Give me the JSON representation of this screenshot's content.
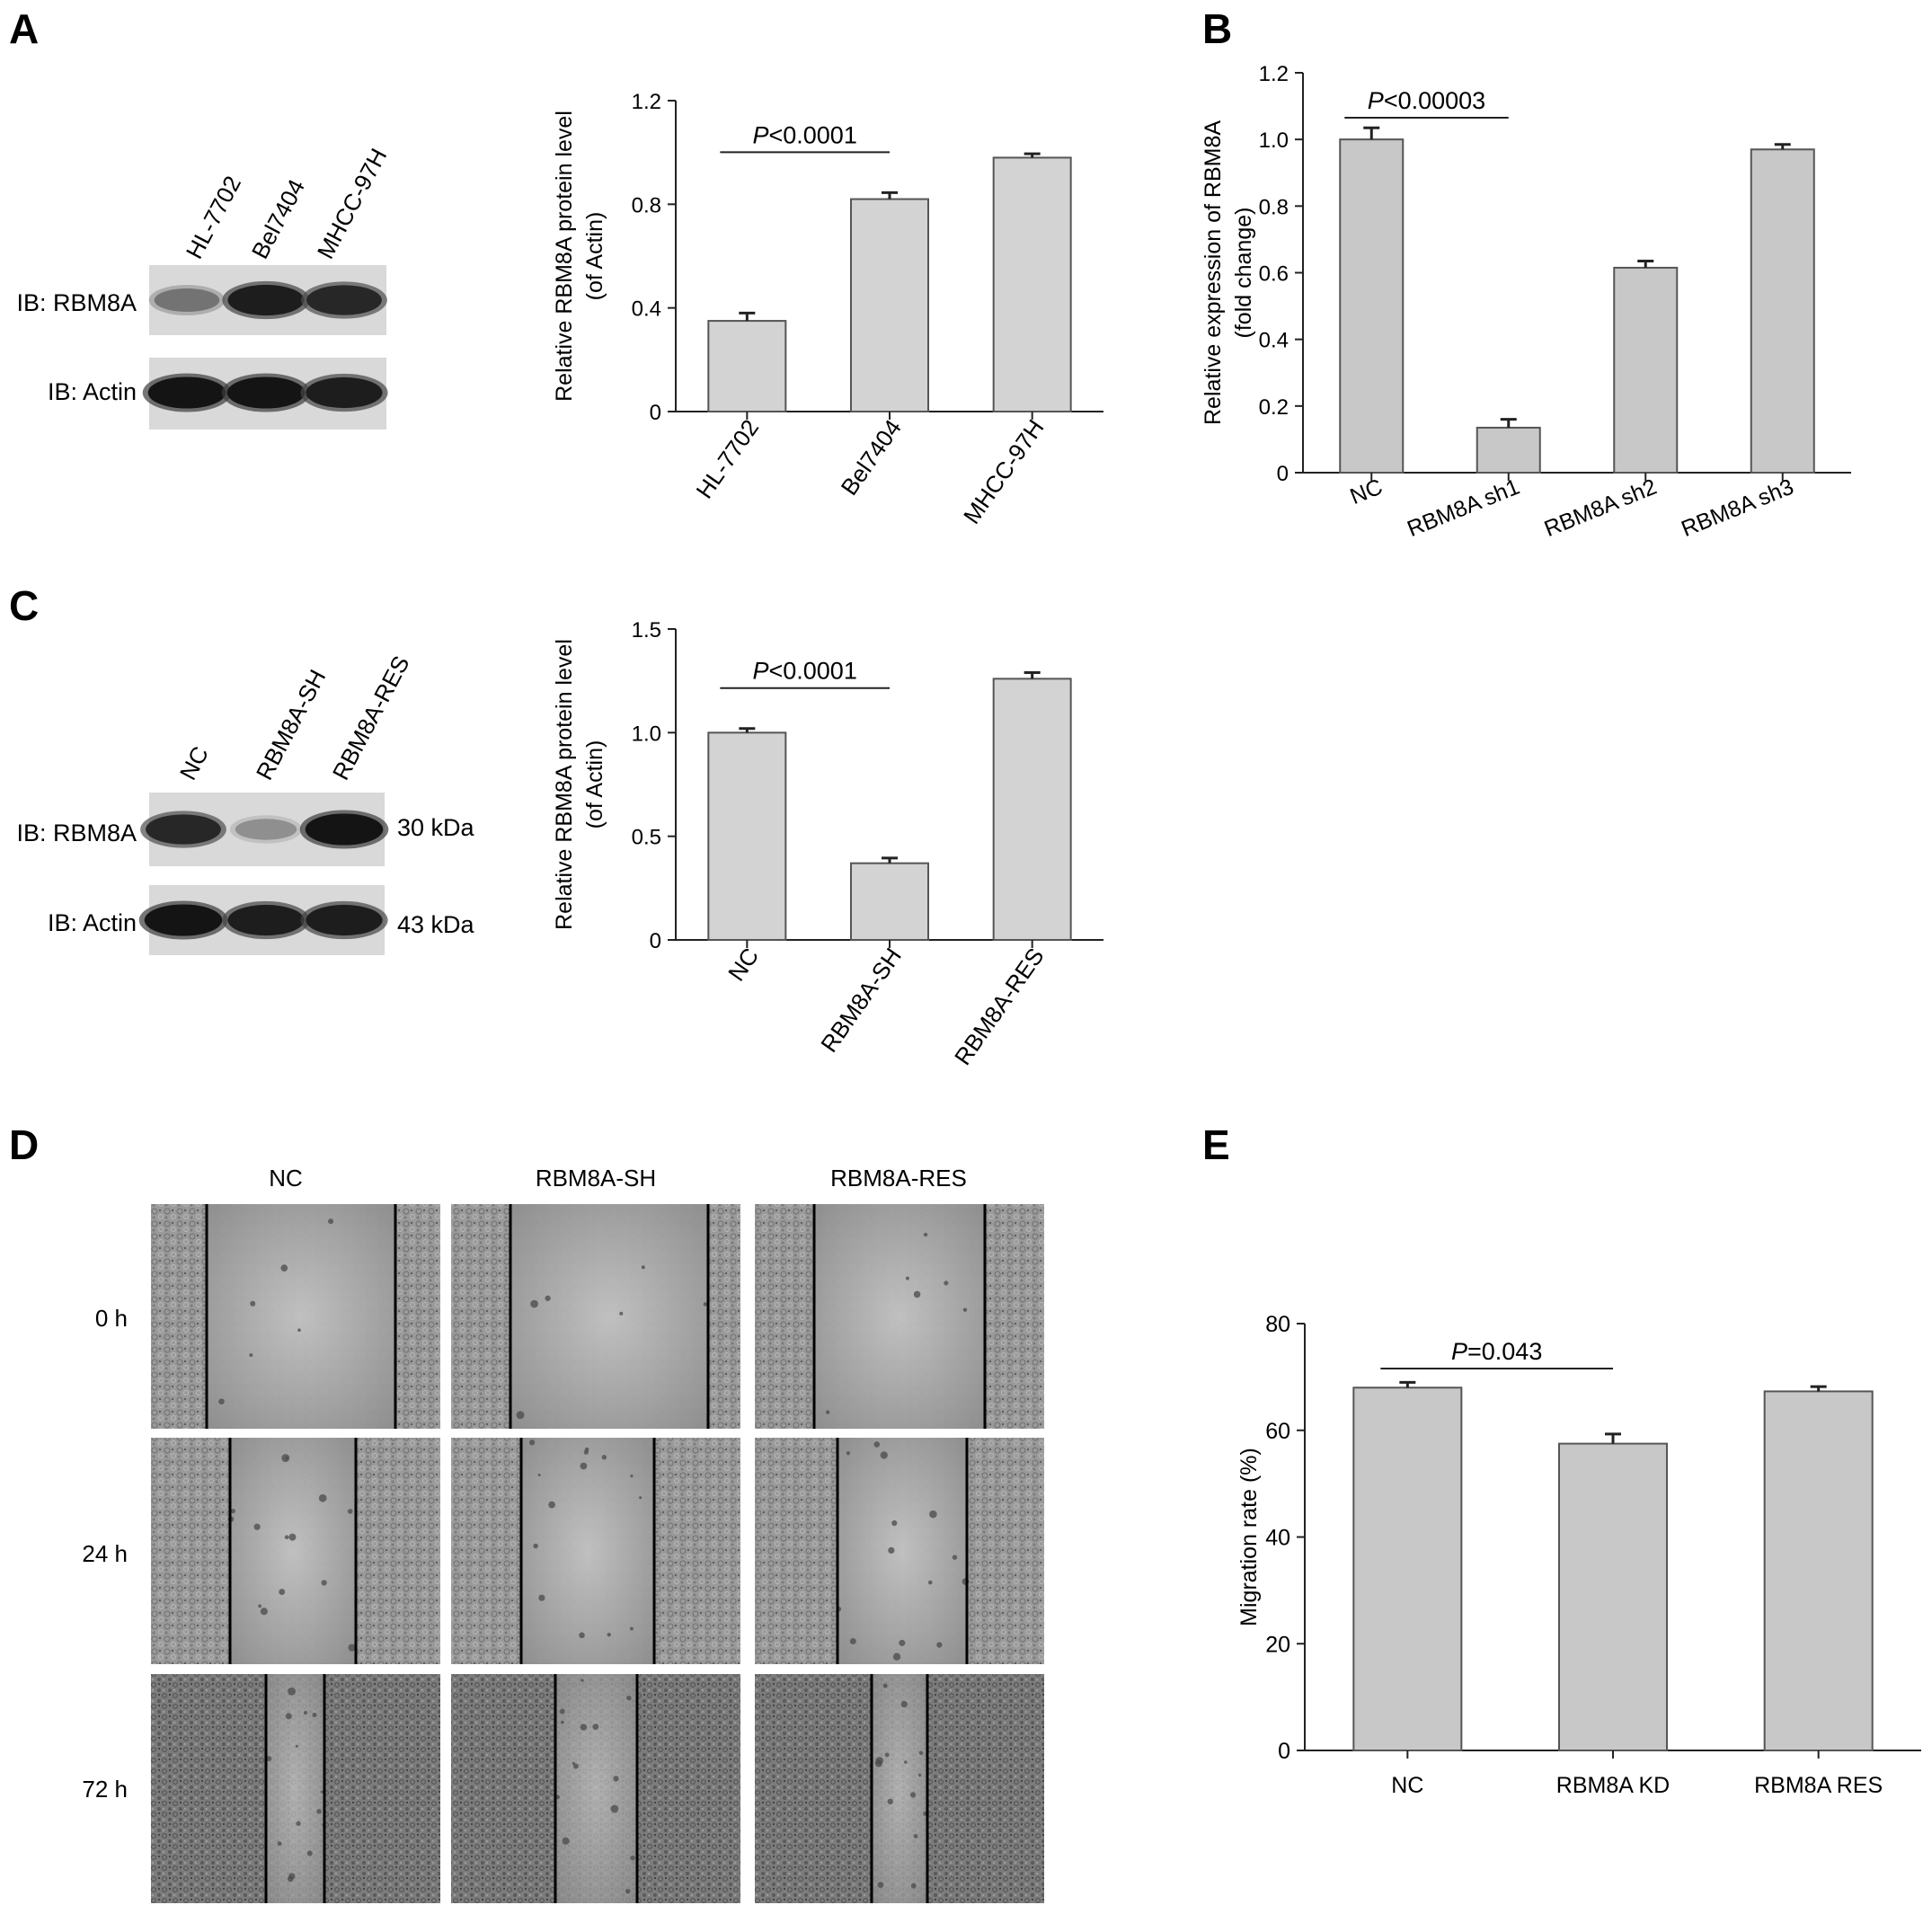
{
  "panels": {
    "A": {
      "letter": "A",
      "blot": {
        "lanes": [
          "HL-7702",
          "Bel7404",
          "MHCC-97H"
        ],
        "rows": [
          {
            "label": "IB: RBM8A",
            "intensities": [
              0.45,
              0.9,
              0.85
            ]
          },
          {
            "label": "IB: Actin",
            "intensities": [
              0.95,
              0.95,
              0.9
            ]
          }
        ]
      }
    },
    "B": {
      "letter": "B"
    },
    "C": {
      "letter": "C",
      "blot": {
        "lanes": [
          "NC",
          "RBM8A-SH",
          "RBM8A-RES"
        ],
        "rows": [
          {
            "label": "IB: RBM8A",
            "intensities": [
              0.85,
              0.3,
              0.95
            ],
            "size": "30 kDa"
          },
          {
            "label": "IB: Actin",
            "intensities": [
              0.95,
              0.9,
              0.9
            ],
            "size": "43 kDa"
          }
        ]
      }
    },
    "D": {
      "letter": "D",
      "columns": [
        "NC",
        "RBM8A-SH",
        "RBM8A-RES"
      ],
      "rows": [
        "0 h",
        "24 h",
        "72 h"
      ],
      "description": "Wound-healing microscopy images"
    },
    "E": {
      "letter": "E"
    }
  },
  "chart_data": [
    {
      "id": "A",
      "type": "bar",
      "categories": [
        "HL-7702",
        "Bel7404",
        "MHCC-97H"
      ],
      "values": [
        0.35,
        0.82,
        0.98
      ],
      "errors": [
        0.03,
        0.025,
        0.015
      ],
      "ylabel_lines": [
        "Relative RBM8A protein level",
        "(of Actin)"
      ],
      "ylim": [
        0,
        1.2
      ],
      "yticks": [
        0,
        0.4,
        0.8,
        1.2
      ],
      "ytick_labels": [
        "0",
        "0.4",
        "0.8",
        "1.2"
      ],
      "xtick_rotation": -55,
      "annotation": {
        "from": 0,
        "to": 1,
        "p": "P",
        "text": "<0.0001"
      },
      "bar_color": "#d3d3d3"
    },
    {
      "id": "B",
      "type": "bar",
      "categories": [
        "NC",
        "RBM8A sh1",
        "RBM8A sh2",
        "RBM8A sh3"
      ],
      "values": [
        1.0,
        0.135,
        0.615,
        0.97
      ],
      "errors": [
        0.035,
        0.025,
        0.02,
        0.015
      ],
      "ylabel_lines": [
        "Relative expression of RBM8A",
        "(fold change)"
      ],
      "ylim": [
        0,
        1.2
      ],
      "yticks": [
        0,
        0.2,
        0.4,
        0.6,
        0.8,
        1.0,
        1.2
      ],
      "ytick_labels": [
        "0",
        "0.2",
        "0.4",
        "0.6",
        "0.8",
        "1.0",
        "1.2"
      ],
      "xtick_rotation": -22,
      "annotation": {
        "from": 0,
        "to": 1,
        "p": "P",
        "text": "<0.00003"
      },
      "bar_color": "#c8c8c8"
    },
    {
      "id": "C",
      "type": "bar",
      "categories": [
        "NC",
        "RBM8A-SH",
        "RBM8A-RES"
      ],
      "values": [
        1.0,
        0.37,
        1.26
      ],
      "errors": [
        0.02,
        0.025,
        0.03
      ],
      "ylabel_lines": [
        "Relative RBM8A protein level",
        "(of Actin)"
      ],
      "ylim": [
        0,
        1.5
      ],
      "yticks": [
        0,
        0.5,
        1.0,
        1.5
      ],
      "ytick_labels": [
        "0",
        "0.5",
        "1.0",
        "1.5"
      ],
      "xtick_rotation": -55,
      "annotation": {
        "from": 0,
        "to": 1,
        "p": "P",
        "text": "<0.0001"
      },
      "bar_color": "#d3d3d3"
    },
    {
      "id": "E",
      "type": "bar",
      "categories": [
        "NC",
        "RBM8A KD",
        "RBM8A RES"
      ],
      "values": [
        68,
        57.5,
        67.3
      ],
      "errors": [
        1.0,
        1.8,
        0.9
      ],
      "ylabel_lines": [
        "Migration rate (%)"
      ],
      "ylim": [
        0,
        80
      ],
      "yticks": [
        0,
        20,
        40,
        60,
        80
      ],
      "ytick_labels": [
        "0",
        "20",
        "40",
        "60",
        "80"
      ],
      "xtick_rotation": 0,
      "annotation": {
        "from": 0,
        "to": 1,
        "p": "P",
        "text": "=0.043"
      },
      "bar_color": "#c8c8c8"
    }
  ]
}
